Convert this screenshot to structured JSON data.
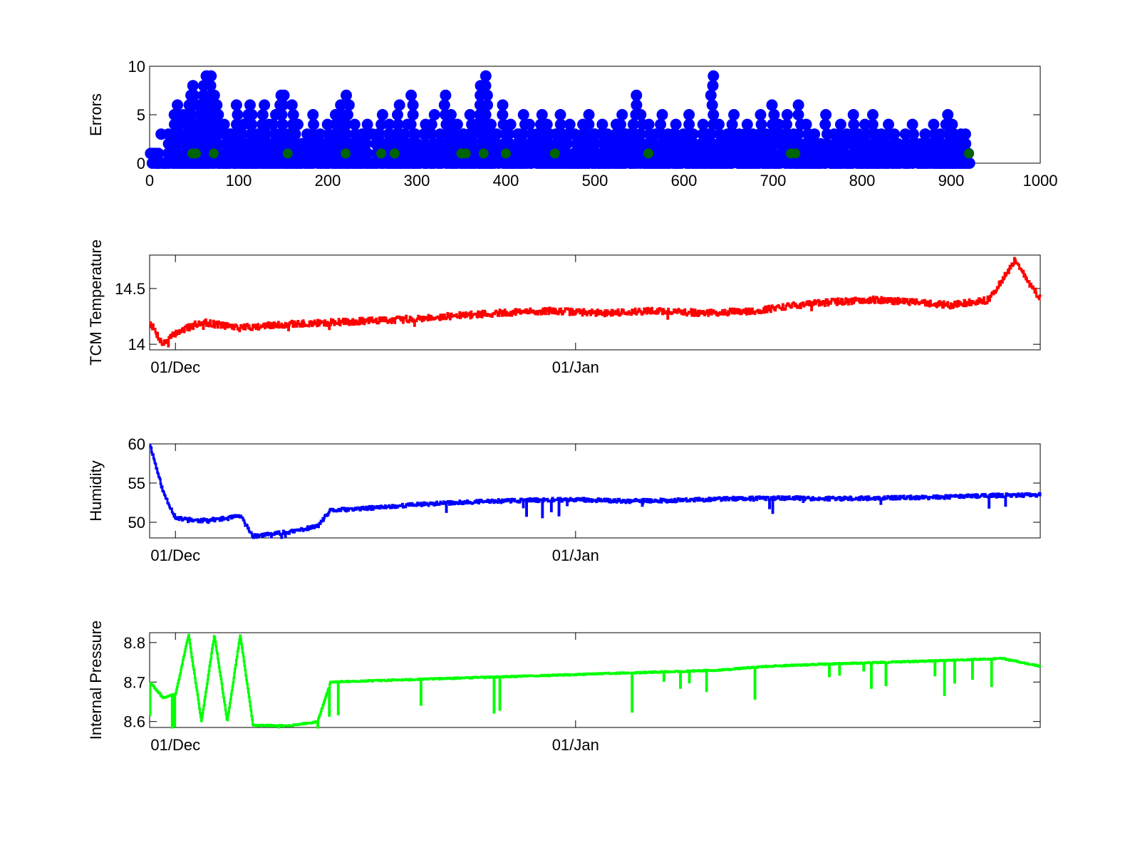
{
  "chart_data": [
    {
      "type": "scatter",
      "ylabel": "Errors",
      "xlim": [
        0,
        1000
      ],
      "ylim": [
        0,
        10
      ],
      "x_ticks": [
        "0",
        "100",
        "200",
        "300",
        "400",
        "500",
        "600",
        "700",
        "800",
        "900",
        "1000"
      ],
      "y_ticks": [
        "0",
        "5",
        "10"
      ],
      "series": [
        {
          "color": "#0000ff",
          "x": [
            2,
            10,
            20,
            28,
            33,
            40,
            45,
            48,
            52,
            55,
            60,
            62,
            66,
            70,
            74,
            78,
            85,
            90,
            98,
            105,
            112,
            115,
            120,
            128,
            132,
            140,
            148,
            150,
            155,
            160,
            165,
            172,
            178,
            185,
            192,
            200,
            208,
            215,
            222,
            230,
            238,
            245,
            255,
            260,
            268,
            275,
            280,
            288,
            295,
            300,
            310,
            318,
            325,
            333,
            340,
            345,
            352,
            360,
            365,
            372,
            378,
            385,
            390,
            398,
            405,
            412,
            420,
            428,
            435,
            440,
            448,
            456,
            462,
            470,
            478,
            485,
            492,
            500,
            508,
            515,
            522,
            530,
            538,
            545,
            552,
            560,
            568,
            575,
            582,
            590,
            598,
            605,
            612,
            620,
            628,
            632,
            640,
            648,
            655,
            662,
            670,
            678,
            685,
            692,
            700,
            708,
            715,
            722,
            730,
            738,
            745,
            752,
            760,
            768,
            775,
            782,
            790,
            798,
            805,
            812,
            820,
            828,
            835,
            842,
            850,
            858,
            865,
            872,
            880,
            888,
            895,
            902,
            910,
            918
          ],
          "y": [
            1,
            1,
            1,
            5,
            6,
            5,
            7,
            8,
            4,
            6,
            7,
            9,
            6,
            9,
            7,
            5,
            4,
            3,
            6,
            4,
            6,
            5,
            3,
            6,
            4,
            5,
            7,
            7,
            3,
            6,
            4,
            2,
            3,
            5,
            3,
            4,
            5,
            6,
            7,
            4,
            3,
            4,
            3,
            5,
            4,
            3,
            6,
            4,
            7,
            3,
            4,
            5,
            3,
            7,
            5,
            4,
            3,
            5,
            4,
            8,
            9,
            4,
            3,
            6,
            4,
            3,
            5,
            4,
            3,
            5,
            4,
            3,
            5,
            4,
            3,
            4,
            5,
            3,
            4,
            3,
            4,
            5,
            3,
            7,
            5,
            4,
            3,
            5,
            3,
            4,
            3,
            5,
            3,
            4,
            3,
            9,
            4,
            3,
            5,
            3,
            4,
            3,
            5,
            3,
            6,
            4,
            5,
            3,
            6,
            4,
            3,
            2,
            5,
            3,
            4,
            3,
            5,
            3,
            4,
            5,
            3,
            4,
            3,
            2,
            3,
            4,
            2,
            3,
            4,
            3,
            5,
            4,
            3,
            2
          ],
          "base_cluster": "dense blue points at 0 to 3 across x = 0 to 922"
        },
        {
          "color": "#006400",
          "x": [
            48,
            52,
            72,
            155,
            220,
            260,
            275,
            350,
            355,
            375,
            400,
            455,
            560,
            720,
            725,
            920
          ],
          "y": [
            1,
            1,
            1,
            1,
            1,
            1,
            1,
            1,
            1,
            1,
            1,
            1,
            1,
            1,
            1,
            1
          ]
        }
      ]
    },
    {
      "type": "line",
      "ylabel": "TCM Temperature",
      "x_ticks": [
        "01/Dec",
        "01/Jan"
      ],
      "y_ticks": [
        "14",
        "14.5"
      ],
      "ylim": [
        13.95,
        14.8
      ],
      "series": [
        {
          "color": "#ff0000",
          "x": [
            "2010-11-29",
            "2010-11-30",
            "2010-12-01",
            "2010-12-03",
            "2010-12-06",
            "2010-12-10",
            "2010-12-14",
            "2010-12-18",
            "2010-12-22",
            "2010-12-26",
            "2010-12-30",
            "2011-01-03",
            "2011-01-07",
            "2011-01-11",
            "2011-01-15",
            "2011-01-18",
            "2011-01-21",
            "2011-01-24",
            "2011-01-27",
            "2011-01-30",
            "2011-02-02",
            "2011-02-04",
            "2011-02-06"
          ],
          "y": [
            14.2,
            14.0,
            14.1,
            14.2,
            14.15,
            14.18,
            14.2,
            14.22,
            14.25,
            14.28,
            14.3,
            14.28,
            14.3,
            14.28,
            14.3,
            14.35,
            14.38,
            14.4,
            14.38,
            14.35,
            14.4,
            14.75,
            14.4
          ]
        }
      ]
    },
    {
      "type": "line",
      "ylabel": "Humidity",
      "x_ticks": [
        "01/Dec",
        "01/Jan"
      ],
      "y_ticks": [
        "50",
        "55",
        "60"
      ],
      "ylim": [
        48,
        60
      ],
      "series": [
        {
          "color": "#0000ff",
          "x": [
            "2010-11-29",
            "2010-11-30",
            "2010-12-01",
            "2010-12-03",
            "2010-12-05",
            "2010-12-06",
            "2010-12-07",
            "2010-12-10",
            "2010-12-12",
            "2010-12-13",
            "2010-12-16",
            "2010-12-20",
            "2010-12-24",
            "2010-12-28",
            "2011-01-01",
            "2011-01-05",
            "2011-01-09",
            "2011-01-13",
            "2011-01-17",
            "2011-01-21",
            "2011-01-25",
            "2011-01-29",
            "2011-02-02",
            "2011-02-06"
          ],
          "y": [
            60,
            54,
            50.5,
            50.2,
            50.5,
            50.8,
            48.2,
            48.8,
            49.5,
            51.5,
            51.8,
            52.3,
            52.6,
            52.8,
            52.9,
            52.7,
            52.8,
            53.0,
            53.1,
            53.0,
            53.1,
            53.2,
            53.4,
            53.5
          ]
        }
      ]
    },
    {
      "type": "line",
      "ylabel": "Internal Pressure",
      "x_ticks": [
        "01/Dec",
        "01/Jan"
      ],
      "y_ticks": [
        "8.6",
        "8.7",
        "8.8"
      ],
      "ylim": [
        8.585,
        8.825
      ],
      "series": [
        {
          "color": "#00ff00",
          "x": [
            "2010-11-29",
            "2010-11-30",
            "2010-12-01",
            "2010-12-02",
            "2010-12-03",
            "2010-12-04",
            "2010-12-05",
            "2010-12-06",
            "2010-12-07",
            "2010-12-10",
            "2010-12-12",
            "2010-12-13",
            "2010-12-18",
            "2010-12-23",
            "2010-12-28",
            "2011-01-02",
            "2011-01-07",
            "2011-01-12",
            "2011-01-16",
            "2011-01-20",
            "2011-01-25",
            "2011-01-30",
            "2011-02-03",
            "2011-02-06"
          ],
          "y": [
            8.7,
            8.66,
            8.67,
            8.82,
            8.6,
            8.82,
            8.6,
            8.82,
            8.59,
            8.59,
            8.6,
            8.7,
            8.705,
            8.71,
            8.715,
            8.72,
            8.725,
            8.73,
            8.74,
            8.745,
            8.75,
            8.755,
            8.76,
            8.74
          ]
        }
      ]
    }
  ]
}
